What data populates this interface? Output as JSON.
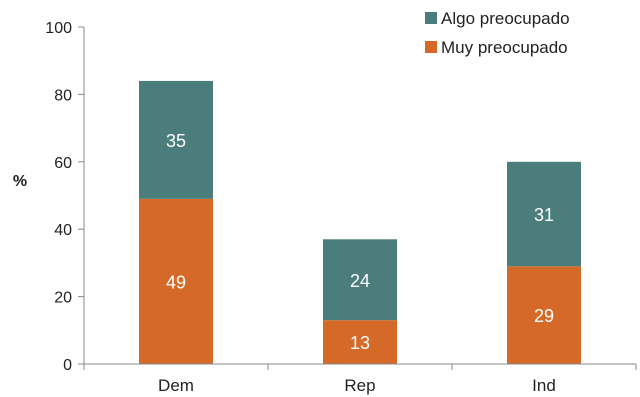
{
  "chart_data": {
    "type": "bar",
    "stacked": true,
    "categories": [
      "Dem",
      "Rep",
      "Ind"
    ],
    "series": [
      {
        "name": "Muy preocupado",
        "values": [
          49,
          13,
          29
        ],
        "color": "#d56a28"
      },
      {
        "name": "Algo preocupado",
        "values": [
          35,
          24,
          31
        ],
        "color": "#4a7d7c"
      }
    ],
    "ylabel": "%",
    "xlabel": "",
    "title": "",
    "ylim": [
      0,
      100
    ],
    "yticks": [
      "0",
      "20",
      "40",
      "60",
      "80",
      "100"
    ],
    "legend_position": "top-right",
    "grid": false
  }
}
